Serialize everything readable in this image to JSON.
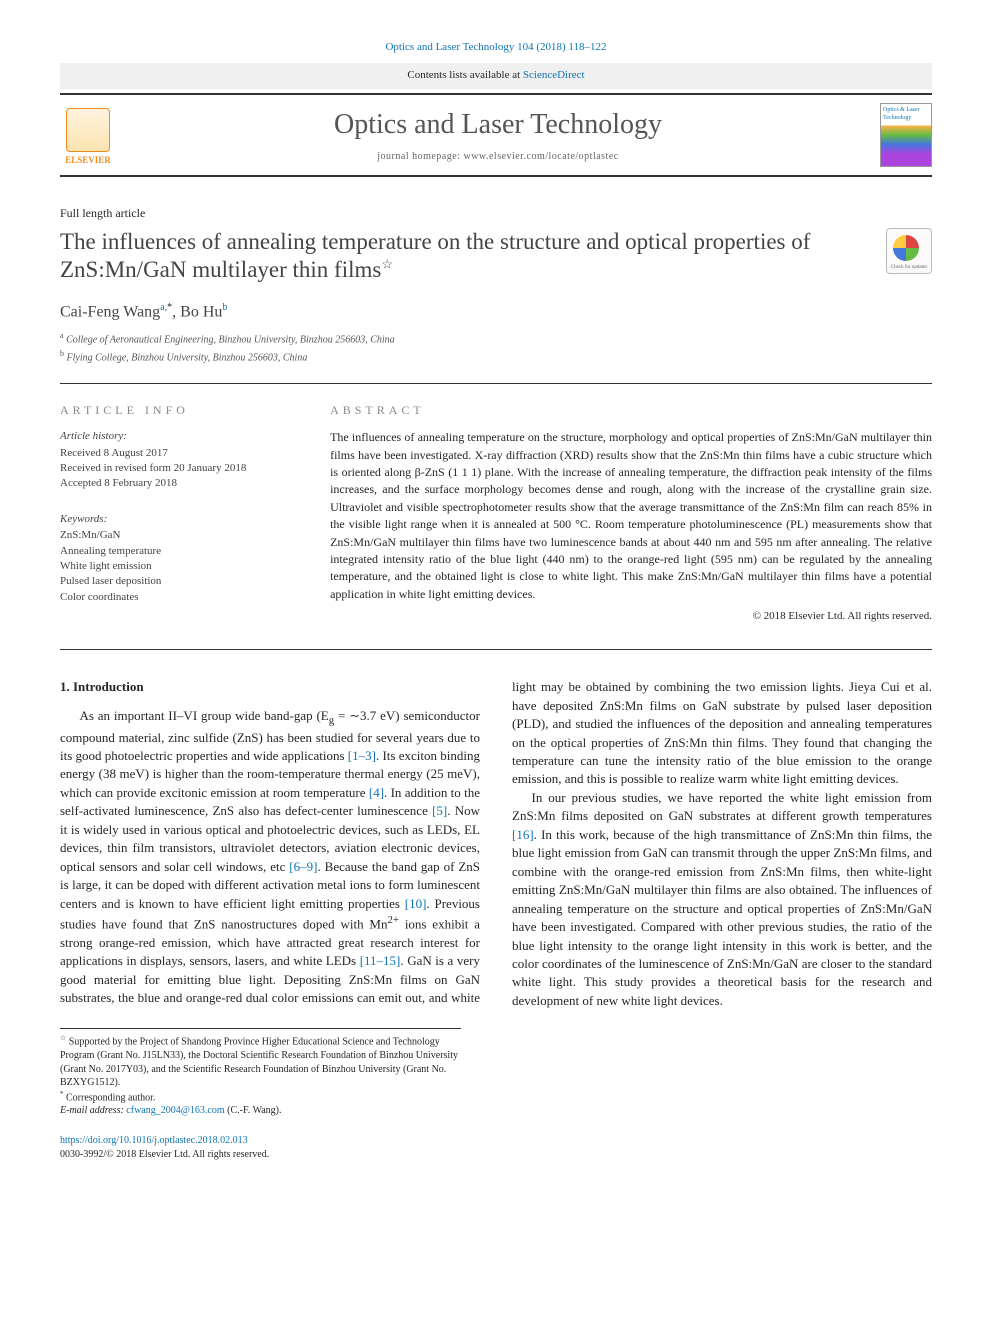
{
  "header": {
    "citation": "Optics and Laser Technology 104 (2018) 118–122",
    "contents_label": "Contents lists available at ",
    "contents_link": "ScienceDirect",
    "journal_name": "Optics and Laser Technology",
    "homepage_label": "journal homepage: ",
    "homepage_url": "www.elsevier.com/locate/optlastec",
    "elsevier": "ELSEVIER",
    "cover_label": "Optics & Laser Technology"
  },
  "article": {
    "type": "Full length article",
    "title": "The influences of annealing temperature on the structure and optical properties of ZnS:Mn/GaN multilayer thin films",
    "title_marker": "☆",
    "check_updates": "Check for updates",
    "authors_html": "Cai-Feng Wang",
    "author1_aff": "a,",
    "author1_star": "*",
    "author_sep": ", ",
    "author2": "Bo Hu",
    "author2_aff": "b",
    "affiliations": [
      {
        "sup": "a",
        "text": "College of Aeronautical Engineering, Binzhou University, Binzhou 256603, China"
      },
      {
        "sup": "b",
        "text": "Flying College, Binzhou University, Binzhou 256603, China"
      }
    ]
  },
  "info": {
    "header": "article info",
    "history_label": "Article history:",
    "received": "Received 8 August 2017",
    "revised": "Received in revised form 20 January 2018",
    "accepted": "Accepted 8 February 2018",
    "keywords_label": "Keywords:",
    "keywords": [
      "ZnS:Mn/GaN",
      "Annealing temperature",
      "White light emission",
      "Pulsed laser deposition",
      "Color coordinates"
    ]
  },
  "abstract": {
    "header": "abstract",
    "text": "The influences of annealing temperature on the structure, morphology and optical properties of ZnS:Mn/GaN multilayer thin films have been investigated. X-ray diffraction (XRD) results show that the ZnS:Mn thin films have a cubic structure which is oriented along β-ZnS (1 1 1) plane. With the increase of annealing temperature, the diffraction peak intensity of the films increases, and the surface morphology becomes dense and rough, along with the increase of the crystalline grain size. Ultraviolet and visible spectrophotometer results show that the average transmittance of the ZnS:Mn film can reach 85% in the visible light range when it is annealed at 500 °C. Room temperature photoluminescence (PL) measurements show that ZnS:Mn/GaN multilayer thin films have two luminescence bands at about 440 nm and 595 nm after annealing. The relative integrated intensity ratio of the blue light (440 nm) to the orange-red light (595 nm) can be regulated by the annealing temperature, and the obtained light is close to white light. This make ZnS:Mn/GaN multilayer thin films have a potential application in white light emitting devices.",
    "copyright": "© 2018 Elsevier Ltd. All rights reserved."
  },
  "body": {
    "section_title": "1. Introduction",
    "p1a": "As an important II–VI group wide band-gap (E",
    "p1_sub": "g",
    "p1b": " = ∼3.7 eV) semiconductor compound material, zinc sulfide (ZnS) has been studied for several years due to its good photoelectric properties and wide applications ",
    "ref1": "[1–3]",
    "p1c": ". Its exciton binding energy (38 meV) is higher than the room-temperature thermal energy (25 meV), which can provide excitonic emission at room temperature ",
    "ref2": "[4]",
    "p1d": ". In addition to the self-activated luminescence, ZnS also has defect-center luminescence ",
    "ref3": "[5]",
    "p1e": ". Now it is widely used in various optical and photoelectric devices, such as LEDs, EL devices, thin film transistors, ultraviolet detectors, aviation electronic devices, optical sensors and solar cell windows, etc ",
    "ref4": "[6–9]",
    "p1f": ". Because the band gap of ZnS is large, it can be doped with different activation metal ions to form luminescent centers and is known to have efficient light emitting properties ",
    "ref5": "[10]",
    "p1g": ". Previous studies have found that ZnS nanostructures doped with Mn",
    "p1_sup": "2+",
    "p1h": " ions exhibit a strong orange-red emission, which have attracted great research interest for applications in dis",
    "p2a_cont": "plays, sensors, lasers, and white LEDs ",
    "ref6": "[11–15]",
    "p2b": ". GaN is a very good material for emitting blue light. Depositing ZnS:Mn films on GaN substrates, the blue and orange-red dual color emissions can emit out, and white light may be obtained by combining the two emission lights. Jieya Cui et al. have deposited ZnS:Mn films on GaN substrate by pulsed laser deposition (PLD), and studied the influences of the deposition and annealing temperatures on the optical properties of ZnS:Mn thin films. They found that changing the temperature can tune the intensity ratio of the blue emission to the orange emission, and this is possible to realize warm white light emitting devices.",
    "p3a": "In our previous studies, we have reported the white light emission from ZnS:Mn films deposited on GaN substrates at different growth temperatures ",
    "ref7": "[16]",
    "p3b": ". In this work, because of the high transmittance of ZnS:Mn thin films, the blue light emission from GaN can transmit through the upper ZnS:Mn films, and combine with the orange-red emission from ZnS:Mn films, then white-light emitting ZnS:Mn/GaN multilayer thin films are also obtained. The influences of annealing temperature on the structure and optical properties of ZnS:Mn/GaN have been investigated. Compared with other previous studies, the ratio of the blue light intensity to the orange light intensity in this work is better, and the color coordinates of the luminescence of ZnS:Mn/GaN are closer to the standard white light. This study provides a theoretical basis for the research and development of new white light devices."
  },
  "footnotes": {
    "funding_marker": "☆",
    "funding": " Supported by the Project of Shandong Province Higher Educational Science and Technology Program (Grant No. J15LN33), the Doctoral Scientific Research Foundation of Binzhou University (Grant No. 2017Y03), and the Scientific Research Foundation of Binzhou University (Grant No. BZXYG1512).",
    "corr_marker": "*",
    "corr": " Corresponding author.",
    "email_label": "E-mail address: ",
    "email": "cfwang_2004@163.com",
    "email_suffix": " (C.-F. Wang)."
  },
  "footer": {
    "doi": "https://doi.org/10.1016/j.optlastec.2018.02.013",
    "issn_line": "0030-3992/© 2018 Elsevier Ltd. All rights reserved."
  },
  "colors": {
    "link": "#1074b2",
    "elsevier_orange": "#f28c1e",
    "text": "#262626",
    "muted": "#888"
  }
}
